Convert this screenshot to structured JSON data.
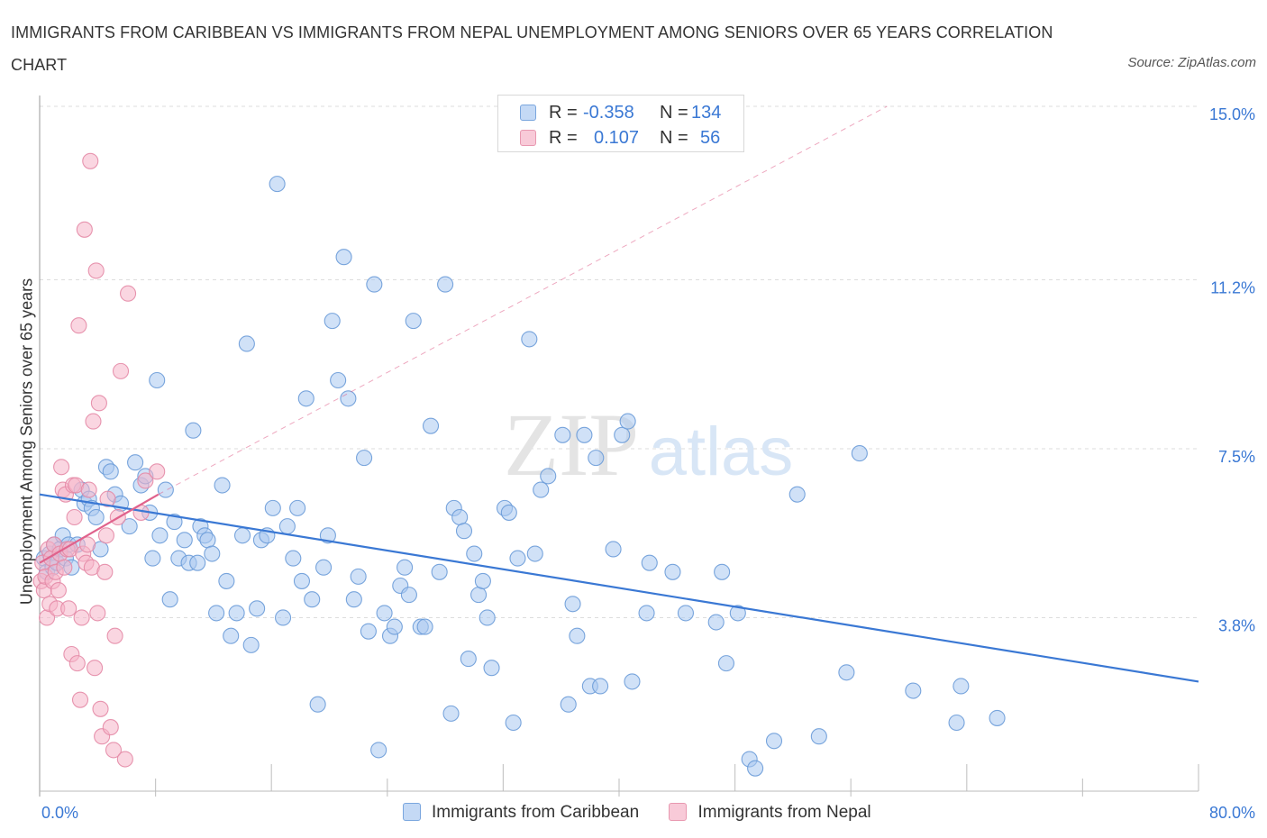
{
  "title": "IMMIGRANTS FROM CARIBBEAN VS IMMIGRANTS FROM NEPAL UNEMPLOYMENT AMONG SENIORS OVER 65 YEARS CORRELATION CHART",
  "source": "Source: ZipAtlas.com",
  "watermark": {
    "zip": "ZIP",
    "atlas": "atlas"
  },
  "legend_top": {
    "rows": [
      {
        "r_label": "R =",
        "r_value": "-0.358",
        "n_label": "N =",
        "n_value": "134"
      },
      {
        "r_label": "R =",
        "r_value": "0.107",
        "n_label": "N =",
        "n_value": "56"
      }
    ]
  },
  "legend_bottom": [
    "Immigrants from Caribbean",
    "Immigrants from Nepal"
  ],
  "colors": {
    "caribbean_fill": "#aac8f0",
    "caribbean_stroke": "#6a9bd8",
    "caribbean_line": "#3a78d4",
    "nepal_fill": "#f5b5c8",
    "nepal_stroke": "#e48aa6",
    "nepal_line": "#e0628c",
    "tick_label": "#3a78d4",
    "grid": "#dddddd"
  },
  "chart_data": {
    "type": "scatter",
    "title": "IMMIGRANTS FROM CARIBBEAN VS IMMIGRANTS FROM NEPAL UNEMPLOYMENT AMONG SENIORS OVER 65 YEARS CORRELATION CHART",
    "xlabel": "",
    "ylabel": "Unemployment Among Seniors over 65 years",
    "xlim": [
      0,
      80
    ],
    "ylim": [
      0,
      15
    ],
    "x_tick_labels": [
      "0.0%",
      "80.0%"
    ],
    "y_ticks": [
      3.8,
      7.5,
      11.2,
      15.0
    ],
    "y_tick_labels": [
      "3.8%",
      "7.5%",
      "11.2%",
      "15.0%"
    ],
    "grid": true,
    "legend_placement": "top-center",
    "series": [
      {
        "name": "Immigrants from Caribbean",
        "R": -0.358,
        "N": 134,
        "trend": {
          "x": [
            0,
            80
          ],
          "y": [
            6.5,
            2.4
          ]
        },
        "points": [
          [
            0.3,
            5.1
          ],
          [
            0.5,
            4.8
          ],
          [
            0.7,
            5.2
          ],
          [
            0.9,
            4.9
          ],
          [
            1.0,
            5.4
          ],
          [
            1.2,
            5.0
          ],
          [
            1.4,
            5.3
          ],
          [
            1.6,
            5.6
          ],
          [
            1.8,
            5.1
          ],
          [
            2.0,
            5.4
          ],
          [
            2.2,
            4.9
          ],
          [
            2.6,
            5.4
          ],
          [
            2.9,
            6.6
          ],
          [
            3.1,
            6.3
          ],
          [
            3.4,
            6.4
          ],
          [
            3.6,
            6.2
          ],
          [
            3.9,
            6.0
          ],
          [
            4.2,
            5.3
          ],
          [
            4.6,
            7.1
          ],
          [
            4.9,
            7.0
          ],
          [
            5.2,
            6.5
          ],
          [
            5.6,
            6.3
          ],
          [
            6.2,
            5.8
          ],
          [
            6.6,
            7.2
          ],
          [
            7.0,
            6.7
          ],
          [
            7.3,
            6.9
          ],
          [
            7.6,
            6.1
          ],
          [
            7.8,
            5.1
          ],
          [
            8.1,
            9.0
          ],
          [
            8.3,
            5.6
          ],
          [
            8.7,
            6.6
          ],
          [
            9.0,
            4.2
          ],
          [
            9.3,
            5.9
          ],
          [
            9.6,
            5.1
          ],
          [
            10.0,
            5.5
          ],
          [
            10.3,
            5.0
          ],
          [
            10.6,
            7.9
          ],
          [
            10.9,
            5.0
          ],
          [
            11.1,
            5.8
          ],
          [
            11.4,
            5.6
          ],
          [
            11.6,
            5.5
          ],
          [
            11.9,
            5.2
          ],
          [
            12.2,
            3.9
          ],
          [
            12.6,
            6.7
          ],
          [
            12.9,
            4.6
          ],
          [
            13.2,
            3.4
          ],
          [
            13.6,
            3.9
          ],
          [
            14.0,
            5.6
          ],
          [
            14.3,
            9.8
          ],
          [
            14.6,
            3.2
          ],
          [
            15.0,
            4.0
          ],
          [
            15.3,
            5.5
          ],
          [
            15.7,
            5.6
          ],
          [
            16.1,
            6.2
          ],
          [
            16.4,
            13.3
          ],
          [
            16.8,
            3.8
          ],
          [
            17.1,
            5.8
          ],
          [
            17.5,
            5.1
          ],
          [
            17.8,
            6.2
          ],
          [
            18.1,
            4.6
          ],
          [
            18.4,
            8.6
          ],
          [
            18.8,
            4.2
          ],
          [
            19.2,
            1.9
          ],
          [
            19.6,
            4.9
          ],
          [
            19.9,
            5.6
          ],
          [
            20.2,
            10.3
          ],
          [
            20.6,
            9.0
          ],
          [
            21.0,
            11.7
          ],
          [
            21.3,
            8.6
          ],
          [
            21.7,
            4.2
          ],
          [
            22.0,
            4.7
          ],
          [
            22.4,
            7.3
          ],
          [
            22.7,
            3.5
          ],
          [
            23.1,
            11.1
          ],
          [
            23.4,
            0.9
          ],
          [
            23.8,
            3.9
          ],
          [
            24.2,
            3.4
          ],
          [
            24.5,
            3.6
          ],
          [
            24.9,
            4.5
          ],
          [
            25.2,
            4.9
          ],
          [
            25.5,
            4.3
          ],
          [
            25.8,
            10.3
          ],
          [
            26.3,
            3.6
          ],
          [
            26.6,
            3.6
          ],
          [
            27.0,
            8.0
          ],
          [
            27.6,
            4.8
          ],
          [
            28.0,
            11.1
          ],
          [
            28.4,
            1.7
          ],
          [
            28.6,
            6.2
          ],
          [
            29.0,
            6.0
          ],
          [
            29.3,
            5.7
          ],
          [
            29.6,
            2.9
          ],
          [
            30.0,
            5.2
          ],
          [
            30.3,
            4.3
          ],
          [
            30.6,
            4.6
          ],
          [
            30.9,
            3.8
          ],
          [
            31.2,
            2.7
          ],
          [
            32.1,
            6.2
          ],
          [
            32.4,
            6.1
          ],
          [
            32.7,
            1.5
          ],
          [
            33.0,
            5.1
          ],
          [
            33.8,
            9.9
          ],
          [
            34.2,
            5.2
          ],
          [
            34.6,
            6.6
          ],
          [
            35.1,
            6.9
          ],
          [
            36.1,
            7.8
          ],
          [
            36.5,
            1.9
          ],
          [
            36.8,
            4.1
          ],
          [
            37.1,
            3.4
          ],
          [
            37.6,
            7.8
          ],
          [
            38.0,
            2.3
          ],
          [
            38.4,
            7.3
          ],
          [
            38.7,
            2.3
          ],
          [
            39.6,
            5.3
          ],
          [
            40.2,
            7.8
          ],
          [
            40.6,
            8.1
          ],
          [
            40.9,
            2.4
          ],
          [
            41.9,
            3.9
          ],
          [
            42.1,
            5.0
          ],
          [
            43.7,
            4.8
          ],
          [
            44.6,
            3.9
          ],
          [
            46.7,
            3.7
          ],
          [
            47.1,
            4.8
          ],
          [
            47.4,
            2.8
          ],
          [
            48.2,
            3.9
          ],
          [
            49.0,
            0.7
          ],
          [
            49.4,
            0.5
          ],
          [
            50.7,
            1.1
          ],
          [
            52.3,
            6.5
          ],
          [
            53.8,
            1.2
          ],
          [
            55.7,
            2.6
          ],
          [
            56.6,
            7.4
          ],
          [
            60.3,
            2.2
          ],
          [
            63.3,
            1.5
          ],
          [
            63.6,
            2.3
          ],
          [
            66.1,
            1.6
          ]
        ]
      },
      {
        "name": "Immigrants from Nepal",
        "R": 0.107,
        "N": 56,
        "trend": {
          "x": [
            0,
            8.2
          ],
          "y": [
            5.0,
            6.5
          ]
        },
        "points": [
          [
            0.1,
            4.6
          ],
          [
            0.2,
            5.0
          ],
          [
            0.3,
            4.4
          ],
          [
            0.4,
            4.7
          ],
          [
            0.5,
            3.8
          ],
          [
            0.6,
            5.3
          ],
          [
            0.7,
            4.1
          ],
          [
            0.8,
            5.1
          ],
          [
            0.9,
            4.6
          ],
          [
            1.0,
            5.4
          ],
          [
            1.1,
            4.8
          ],
          [
            1.2,
            4.0
          ],
          [
            1.3,
            4.4
          ],
          [
            1.4,
            5.2
          ],
          [
            1.5,
            7.1
          ],
          [
            1.6,
            6.6
          ],
          [
            1.7,
            4.9
          ],
          [
            1.8,
            6.5
          ],
          [
            1.9,
            5.3
          ],
          [
            2.0,
            4.0
          ],
          [
            2.1,
            5.3
          ],
          [
            2.2,
            3.0
          ],
          [
            2.3,
            6.7
          ],
          [
            2.4,
            6.0
          ],
          [
            2.5,
            6.7
          ],
          [
            2.6,
            2.8
          ],
          [
            2.7,
            10.2
          ],
          [
            2.8,
            2.0
          ],
          [
            2.9,
            3.8
          ],
          [
            3.0,
            5.2
          ],
          [
            3.1,
            12.3
          ],
          [
            3.2,
            5.0
          ],
          [
            3.3,
            5.4
          ],
          [
            3.4,
            6.6
          ],
          [
            3.5,
            13.8
          ],
          [
            3.6,
            4.9
          ],
          [
            3.7,
            8.1
          ],
          [
            3.8,
            2.7
          ],
          [
            3.9,
            11.4
          ],
          [
            4.0,
            3.9
          ],
          [
            4.1,
            8.5
          ],
          [
            4.2,
            1.8
          ],
          [
            4.3,
            1.2
          ],
          [
            4.5,
            4.8
          ],
          [
            4.6,
            5.6
          ],
          [
            4.7,
            6.4
          ],
          [
            4.9,
            1.4
          ],
          [
            5.1,
            0.9
          ],
          [
            5.2,
            3.4
          ],
          [
            5.4,
            6.0
          ],
          [
            5.6,
            9.2
          ],
          [
            5.9,
            0.7
          ],
          [
            6.1,
            10.9
          ],
          [
            7.0,
            6.1
          ],
          [
            7.3,
            6.8
          ],
          [
            8.1,
            7.0
          ]
        ]
      }
    ]
  }
}
